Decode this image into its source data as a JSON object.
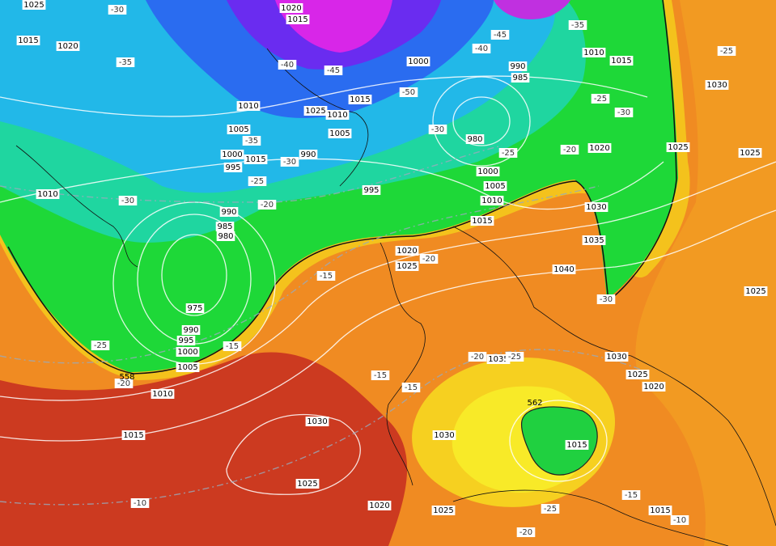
{
  "isobar_labels": [
    "1025",
    "1020",
    "1015",
    "1015",
    "1020",
    "1000",
    "990",
    "985",
    "1010",
    "1015",
    "1030",
    "1010",
    "1025",
    "1015",
    "1010",
    "1005",
    "1005",
    "980",
    "1020",
    "1025",
    "1025",
    "1000",
    "990",
    "1015",
    "995",
    "1000",
    "1005",
    "995",
    "1010",
    "1010",
    "1030",
    "990",
    "1015",
    "985",
    "980",
    "1035",
    "1020",
    "1025",
    "1040",
    "1025",
    "975",
    "990",
    "995",
    "1000",
    "1035",
    "1030",
    "1005",
    "1025",
    "1020",
    "1010",
    "1030",
    "1015",
    "1015",
    "1030",
    "1025",
    "1020",
    "1025",
    "1015"
  ],
  "temperature_labels": [
    "-30",
    "-35",
    "-40",
    "-45",
    "-45",
    "-40",
    "-35",
    "-50",
    "-25",
    "-25",
    "-30",
    "-30",
    "-35",
    "-30",
    "-25",
    "-20",
    "-25",
    "-30",
    "-20",
    "-20",
    "-15",
    "-30",
    "-25",
    "-15",
    "-20",
    "-25",
    "-20",
    "-15",
    "-15",
    "-15",
    "-10",
    "-25",
    "-10",
    "-20"
  ],
  "geopotential_labels": [
    "558",
    "562"
  ]
}
